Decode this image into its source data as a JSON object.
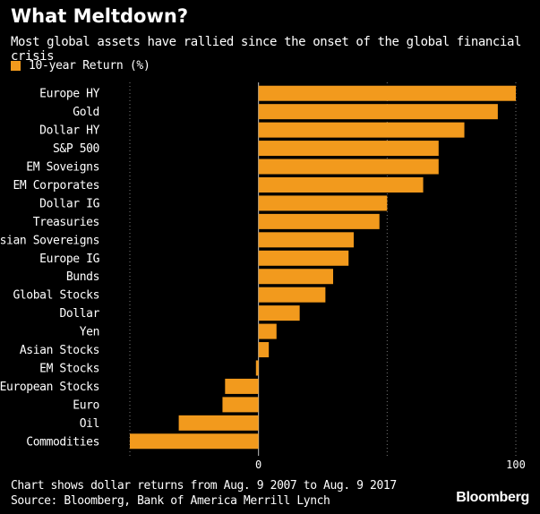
{
  "title": "What Meltdown?",
  "subtitle": "Most global assets have rallied since the onset of the global financial crisis",
  "legend": {
    "label": "10-year Return (%)",
    "color": "#f29a1d"
  },
  "chart_data": {
    "type": "bar",
    "orientation": "horizontal",
    "series_name": "10-year Return (%)",
    "bar_color": "#f29a1d",
    "categories": [
      "Europe HY",
      "Gold",
      "Dollar HY",
      "S&P 500",
      "EM Soveigns",
      "EM Corporates",
      "Dollar IG",
      "Treasuries",
      "Asian Sovereigns",
      "Europe IG",
      "Bunds",
      "Global Stocks",
      "Dollar",
      "Yen",
      "Asian Stocks",
      "EM Stocks",
      "European Stocks",
      "Euro",
      "Oil",
      "Commodities"
    ],
    "values": [
      100,
      93,
      80,
      70,
      70,
      64,
      50,
      47,
      37,
      35,
      29,
      26,
      16,
      7,
      4,
      -1,
      -13,
      -14,
      -31,
      -50
    ],
    "xlim": [
      -50,
      100
    ],
    "xticks": [
      0,
      100
    ],
    "gridlines": [
      -50,
      50,
      100
    ]
  },
  "footnote": {
    "line1": "Chart shows dollar returns from Aug. 9 2007 to Aug. 9 2017",
    "line2": "Source: Bloomberg, Bank of America Merrill Lynch"
  },
  "brand": "Bloomberg"
}
